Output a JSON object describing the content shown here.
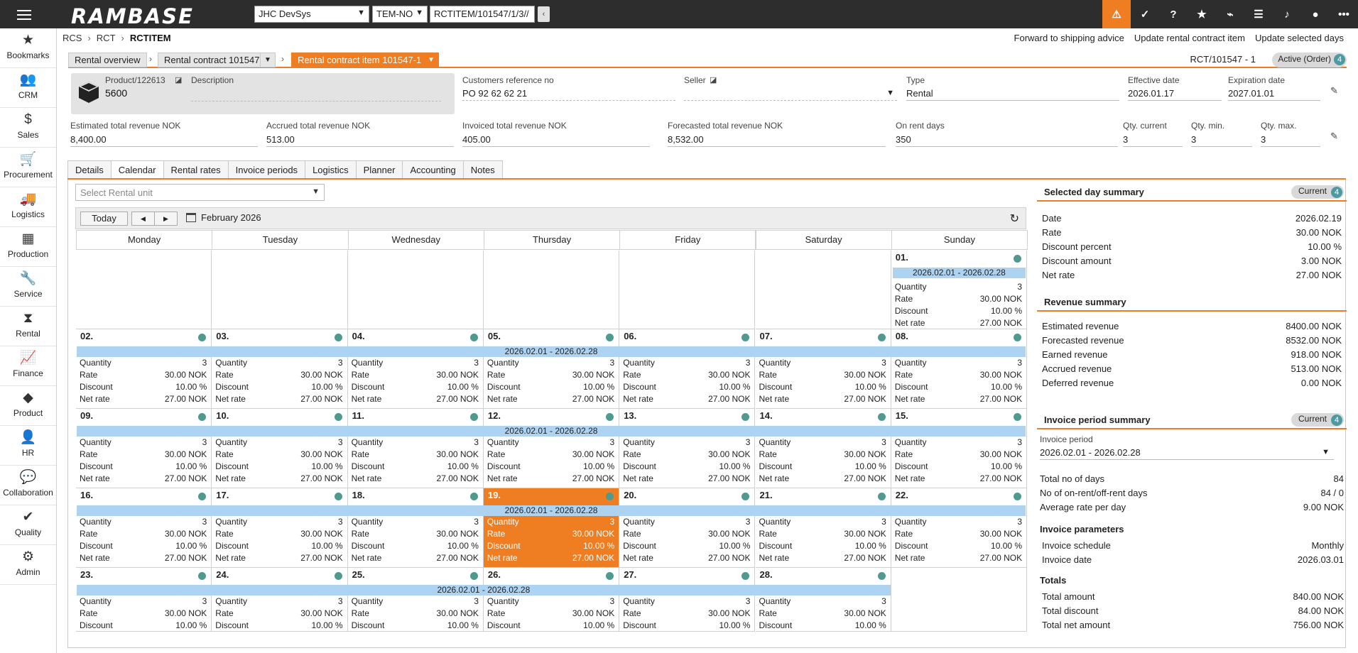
{
  "topbar": {
    "logo": "RAMBASE",
    "company": "JHC DevSys",
    "region": "TEM-NO",
    "path": "RCTITEM/101547/1/3//"
  },
  "nav": [
    {
      "label": "Bookmarks",
      "icon": "star-icon"
    },
    {
      "label": "CRM",
      "icon": "people-icon"
    },
    {
      "label": "Sales",
      "icon": "moneybag-icon"
    },
    {
      "label": "Procurement",
      "icon": "cart-icon"
    },
    {
      "label": "Logistics",
      "icon": "truck-icon"
    },
    {
      "label": "Production",
      "icon": "boxes-icon"
    },
    {
      "label": "Service",
      "icon": "wrench-icon"
    },
    {
      "label": "Rental",
      "icon": "rental-icon"
    },
    {
      "label": "Finance",
      "icon": "chart-line-icon"
    },
    {
      "label": "Product",
      "icon": "cube-icon"
    },
    {
      "label": "HR",
      "icon": "person-icon"
    },
    {
      "label": "Collaboration",
      "icon": "chat-icon"
    },
    {
      "label": "Quality",
      "icon": "check-badge-icon"
    },
    {
      "label": "Admin",
      "icon": "gear-icon"
    }
  ],
  "breadcrumb": [
    "RCS",
    "RCT",
    "RCTITEM"
  ],
  "actions": [
    "Forward to shipping advice",
    "Update rental contract item",
    "Update selected days"
  ],
  "context": {
    "overview": "Rental overview",
    "contract": "Rental contract 101547",
    "item": "Rental contract item 101547-1",
    "id": "RCT/101547 - 1",
    "status": "Active (Order)",
    "status_num": "4"
  },
  "header": {
    "product_label": "Product/122613",
    "product_value": "5600",
    "description_label": "Description",
    "customer_ref_label": "Customers reference no",
    "customer_ref_value": "PO 92 62 62 21",
    "seller_label": "Seller",
    "type_label": "Type",
    "type_value": "Rental",
    "effective_label": "Effective date",
    "effective_value": "2026.01.17",
    "expiration_label": "Expiration date",
    "expiration_value": "2027.01.01",
    "est_label": "Estimated total revenue NOK",
    "est_value": "8,400.00",
    "accrued_label": "Accrued total revenue NOK",
    "accrued_value": "513.00",
    "invoiced_label": "Invoiced total revenue NOK",
    "invoiced_value": "405.00",
    "forecast_label": "Forecasted total revenue NOK",
    "forecast_value": "8,532.00",
    "onrent_label": "On rent days",
    "onrent_value": "350",
    "qcur_label": "Qty. current",
    "qcur_value": "3",
    "qmin_label": "Qty. min.",
    "qmin_value": "3",
    "qmax_label": "Qty. max.",
    "qmax_value": "3"
  },
  "tabs": [
    "Details",
    "Calendar",
    "Rental rates",
    "Invoice periods",
    "Logistics",
    "Planner",
    "Accounting",
    "Notes"
  ],
  "calendar": {
    "rental_unit_placeholder": "Select Rental unit",
    "today": "Today",
    "prev": "◀",
    "next": "▶",
    "month": "February 2026",
    "weekdays": [
      "Monday",
      "Tuesday",
      "Wednesday",
      "Thursday",
      "Friday",
      "Saturday",
      "Sunday"
    ],
    "period": "2026.02.01 - 2026.02.28",
    "labels": [
      "Quantity",
      "Rate",
      "Discount",
      "Net rate"
    ],
    "values": [
      "3",
      "30.00 NOK",
      "10.00 %",
      "27.00 NOK"
    ],
    "selected_day": "19."
  },
  "selected_day": {
    "title": "Selected day summary",
    "badge": "Current",
    "badge_num": "4",
    "rows": [
      {
        "k": "Date",
        "v": "2026.02.19"
      },
      {
        "k": "Rate",
        "v": "30.00 NOK"
      },
      {
        "k": "Discount percent",
        "v": "10.00 %"
      },
      {
        "k": "Discount amount",
        "v": "3.00 NOK"
      },
      {
        "k": "Net rate",
        "v": "27.00 NOK"
      }
    ]
  },
  "revenue": {
    "title": "Revenue summary",
    "rows": [
      {
        "k": "Estimated revenue",
        "v": "8400.00 NOK"
      },
      {
        "k": "Forecasted revenue",
        "v": "8532.00 NOK"
      },
      {
        "k": "Earned revenue",
        "v": "918.00 NOK"
      },
      {
        "k": "Accrued revenue",
        "v": "513.00 NOK"
      },
      {
        "k": "Deferred revenue",
        "v": "0.00 NOK"
      }
    ]
  },
  "invoice_period": {
    "title": "Invoice period summary",
    "badge": "Current",
    "badge_num": "4",
    "period_label": "Invoice period",
    "period_value": "2026.02.01 - 2026.02.28",
    "rows": [
      {
        "k": "Total no of days",
        "v": "84"
      },
      {
        "k": "No of on-rent/off-rent days",
        "v": "84 / 0"
      },
      {
        "k": "Average rate per day",
        "v": "9.00 NOK"
      }
    ],
    "params_title": "Invoice parameters",
    "params": [
      {
        "k": "Invoice schedule",
        "v": "Monthly"
      },
      {
        "k": "Invoice date",
        "v": "2026.03.01"
      }
    ],
    "totals_title": "Totals",
    "totals": [
      {
        "k": "Total amount",
        "v": "840.00 NOK"
      },
      {
        "k": "Total discount",
        "v": "84.00 NOK"
      },
      {
        "k": "Total net amount",
        "v": "756.00 NOK"
      }
    ]
  },
  "colors": {
    "accent": "#ef7d22",
    "band": "#aed3f0",
    "dot": "#4e9a8f"
  }
}
